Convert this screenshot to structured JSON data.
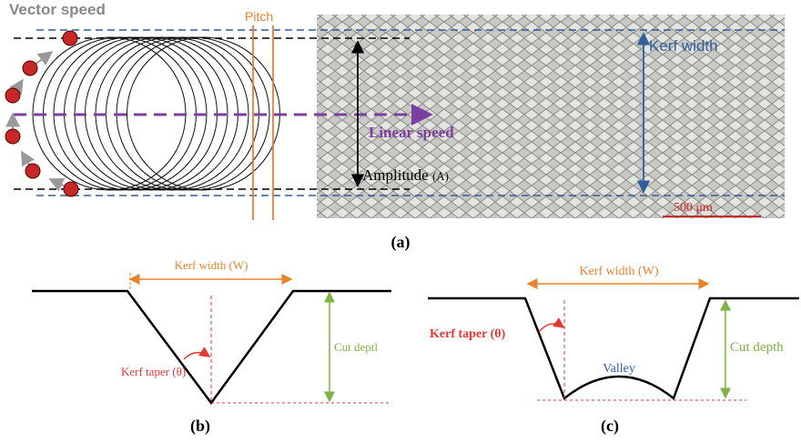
{
  "panel_a": {
    "vector_speed": "Vector speed",
    "pitch": "Pitch",
    "kerf_width": "Kerf width",
    "linear_speed": "Linear speed",
    "amplitude": "Amplitude",
    "amplitude_symbol": "(A)",
    "scale_bar": "500 μm",
    "label": "(a)"
  },
  "panel_b": {
    "kerf_width": "Kerf width (W)",
    "kerf_taper": "Kerf taper (θ)",
    "cut_depth": "Cut deptl",
    "label": "(b)"
  },
  "panel_c": {
    "kerf_width": "Kerf width (W)",
    "kerf_taper": "Kerf taper (θ)",
    "valley": "Valley",
    "cut_depth": "Cut depth",
    "label": "(c)"
  }
}
